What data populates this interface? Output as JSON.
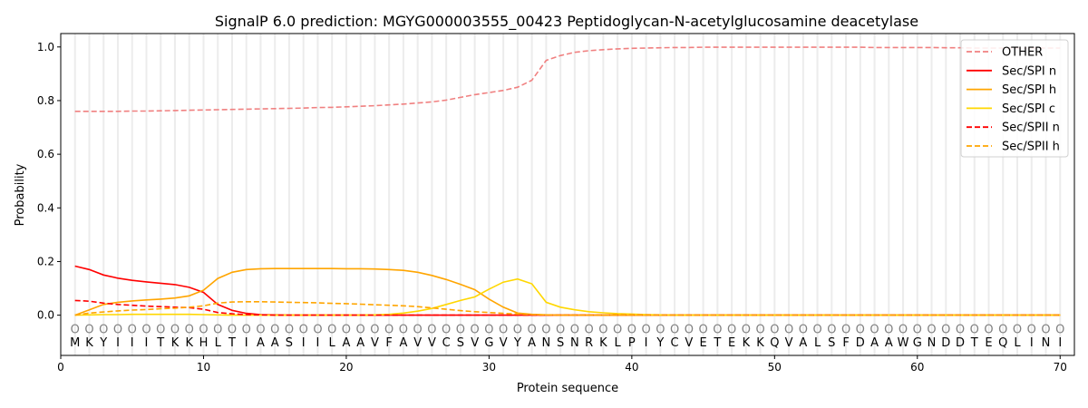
{
  "chart_data": {
    "type": "line",
    "title": "SignalP 6.0 prediction: MGYG000003555_00423 Peptidoglycan-N-acetylglucosamine deacetylase",
    "xlabel": "Protein sequence",
    "ylabel": "Probability",
    "xlim": [
      0,
      71
    ],
    "ylim": [
      -0.15,
      1.05
    ],
    "xticks": [
      0,
      10,
      20,
      30,
      40,
      50,
      60,
      70
    ],
    "yticks": [
      0.0,
      0.2,
      0.4,
      0.6,
      0.8,
      1.0
    ],
    "ytick_labels": [
      "0.0",
      "0.2",
      "0.4",
      "0.6",
      "0.8",
      "1.0"
    ],
    "legend_position": "top-right",
    "sequence": [
      "M",
      "K",
      "Y",
      "I",
      "I",
      "I",
      "T",
      "K",
      "K",
      "H",
      "L",
      "T",
      "I",
      "A",
      "A",
      "S",
      "I",
      "I",
      "L",
      "A",
      "A",
      "V",
      "F",
      "A",
      "V",
      "V",
      "C",
      "S",
      "V",
      "G",
      "V",
      "Y",
      "A",
      "N",
      "S",
      "N",
      "R",
      "K",
      "L",
      "P",
      "I",
      "Y",
      "C",
      "V",
      "E",
      "T",
      "E",
      "K",
      "K",
      "Q",
      "V",
      "A",
      "L",
      "S",
      "F",
      "D",
      "A",
      "A",
      "W",
      "G",
      "N",
      "D",
      "D",
      "T",
      "E",
      "Q",
      "L",
      "I",
      "N",
      "I"
    ],
    "region_label": "O",
    "series": [
      {
        "name": "OTHER",
        "color": "#f08080",
        "dash": true,
        "values": [
          0.76,
          0.76,
          0.76,
          0.76,
          0.761,
          0.761,
          0.762,
          0.763,
          0.764,
          0.765,
          0.766,
          0.767,
          0.768,
          0.769,
          0.77,
          0.771,
          0.772,
          0.774,
          0.775,
          0.777,
          0.779,
          0.781,
          0.784,
          0.787,
          0.791,
          0.795,
          0.802,
          0.812,
          0.822,
          0.83,
          0.838,
          0.85,
          0.876,
          0.95,
          0.968,
          0.98,
          0.986,
          0.99,
          0.993,
          0.995,
          0.996,
          0.997,
          0.998,
          0.998,
          0.999,
          0.999,
          0.999,
          0.999,
          0.999,
          0.999,
          0.999,
          0.999,
          0.999,
          0.999,
          0.999,
          0.999,
          0.998,
          0.998,
          0.998,
          0.998,
          0.998,
          0.997,
          0.997,
          0.996,
          0.996,
          0.996,
          0.996,
          0.996,
          0.996,
          0.996
        ]
      },
      {
        "name": "Sec/SPI n",
        "color": "#ff0000",
        "dash": false,
        "values": [
          0.183,
          0.17,
          0.15,
          0.138,
          0.13,
          0.124,
          0.119,
          0.114,
          0.104,
          0.085,
          0.04,
          0.018,
          0.007,
          0.002,
          0.001,
          0,
          0,
          0,
          0,
          0,
          0,
          0,
          0,
          0,
          0,
          0,
          0,
          0,
          0,
          0,
          0,
          0,
          0,
          0,
          0,
          0,
          0,
          0,
          0,
          0,
          0,
          0,
          0,
          0,
          0,
          0,
          0,
          0,
          0,
          0,
          0,
          0,
          0,
          0,
          0,
          0,
          0,
          0,
          0,
          0,
          0,
          0,
          0,
          0,
          0,
          0,
          0,
          0,
          0,
          0
        ]
      },
      {
        "name": "Sec/SPI h",
        "color": "#ffa500",
        "dash": false,
        "values": [
          0,
          0.02,
          0.04,
          0.048,
          0.053,
          0.057,
          0.06,
          0.064,
          0.072,
          0.093,
          0.137,
          0.16,
          0.17,
          0.173,
          0.174,
          0.174,
          0.174,
          0.174,
          0.174,
          0.173,
          0.173,
          0.172,
          0.17,
          0.167,
          0.16,
          0.148,
          0.133,
          0.115,
          0.095,
          0.06,
          0.03,
          0.008,
          0.003,
          0.001,
          0,
          0,
          0,
          0,
          0,
          0,
          0,
          0,
          0,
          0,
          0,
          0,
          0,
          0,
          0,
          0,
          0,
          0,
          0,
          0,
          0,
          0,
          0,
          0,
          0,
          0,
          0,
          0,
          0,
          0,
          0,
          0,
          0,
          0,
          0,
          0
        ]
      },
      {
        "name": "Sec/SPI c",
        "color": "#ffd700",
        "dash": false,
        "values": [
          0,
          0.001,
          0.002,
          0.002,
          0.003,
          0.003,
          0.003,
          0.003,
          0.003,
          0.002,
          0.001,
          0,
          0,
          0,
          0,
          0,
          0,
          0,
          0,
          0,
          0,
          0.001,
          0.003,
          0.008,
          0.015,
          0.025,
          0.04,
          0.055,
          0.068,
          0.097,
          0.123,
          0.135,
          0.117,
          0.048,
          0.03,
          0.02,
          0.013,
          0.009,
          0.006,
          0.004,
          0.002,
          0.001,
          0,
          0,
          0,
          0,
          0,
          0,
          0,
          0,
          0,
          0,
          0,
          0,
          0,
          0,
          0,
          0,
          0,
          0,
          0,
          0,
          0,
          0,
          0,
          0,
          0,
          0,
          0,
          0
        ]
      },
      {
        "name": "Sec/SPII n",
        "color": "#ff0000",
        "dash": true,
        "values": [
          0.055,
          0.052,
          0.045,
          0.04,
          0.037,
          0.034,
          0.032,
          0.03,
          0.028,
          0.022,
          0.01,
          0.005,
          0.002,
          0.001,
          0,
          0,
          0,
          0,
          0,
          0,
          0,
          0,
          0,
          0,
          0,
          0,
          0,
          0,
          0,
          0,
          0,
          0,
          0,
          0,
          0,
          0,
          0,
          0,
          0,
          0,
          0,
          0,
          0,
          0,
          0,
          0,
          0,
          0,
          0,
          0,
          0,
          0,
          0,
          0,
          0,
          0,
          0,
          0,
          0,
          0,
          0,
          0,
          0,
          0,
          0,
          0,
          0,
          0,
          0,
          0
        ]
      },
      {
        "name": "Sec/SPII h",
        "color": "#ffa500",
        "dash": true,
        "values": [
          0,
          0.008,
          0.012,
          0.016,
          0.019,
          0.021,
          0.024,
          0.026,
          0.03,
          0.035,
          0.045,
          0.049,
          0.05,
          0.05,
          0.049,
          0.048,
          0.047,
          0.046,
          0.044,
          0.043,
          0.041,
          0.039,
          0.037,
          0.035,
          0.032,
          0.027,
          0.022,
          0.017,
          0.013,
          0.01,
          0.007,
          0.004,
          0.002,
          0.001,
          0,
          0,
          0,
          0,
          0,
          0,
          0,
          0,
          0,
          0,
          0,
          0,
          0,
          0,
          0,
          0,
          0,
          0,
          0,
          0,
          0,
          0,
          0,
          0,
          0,
          0,
          0,
          0,
          0,
          0,
          0,
          0,
          0,
          0,
          0,
          0
        ]
      }
    ]
  }
}
